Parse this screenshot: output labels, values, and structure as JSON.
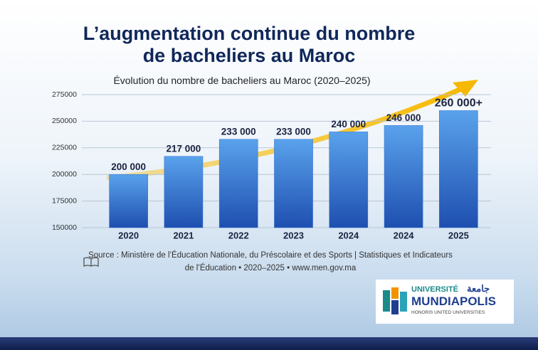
{
  "chart_data": {
    "type": "bar",
    "title": "L’augmentation continue du nombre de bacheliers au Maroc",
    "subtitle": "Évolution du nombre de bacheliers au Maroc (2020–2025)",
    "categories": [
      "2020",
      "2021",
      "2022",
      "2023",
      "2024",
      "2024",
      "2025"
    ],
    "values": [
      200000,
      217000,
      233000,
      233000,
      240000,
      246000,
      260000
    ],
    "value_labels": [
      "200 000",
      "217 000",
      "233 000",
      "233 000",
      "240 000",
      "246 000",
      "260 000+"
    ],
    "color": "#2f6fd0",
    "ylim": [
      150000,
      275000
    ],
    "yticks": [
      150000,
      175000,
      200000,
      225000,
      250000,
      275000
    ],
    "grid": true,
    "source": [
      "Source : Ministère de l’Éducation Nationale, du Préscolaire et des Sports  |  Statistiques et Indicateurs",
      "de l’Éducation • 2020–2025 • www.men.gov.ma"
    ]
  },
  "logo": {
    "line1": "UNIVERSITÉ",
    "arabic": "جامعة",
    "name": "MUNDIAPOLIS",
    "tagline": "HONORIS UNITED UNIVERSITIES"
  }
}
